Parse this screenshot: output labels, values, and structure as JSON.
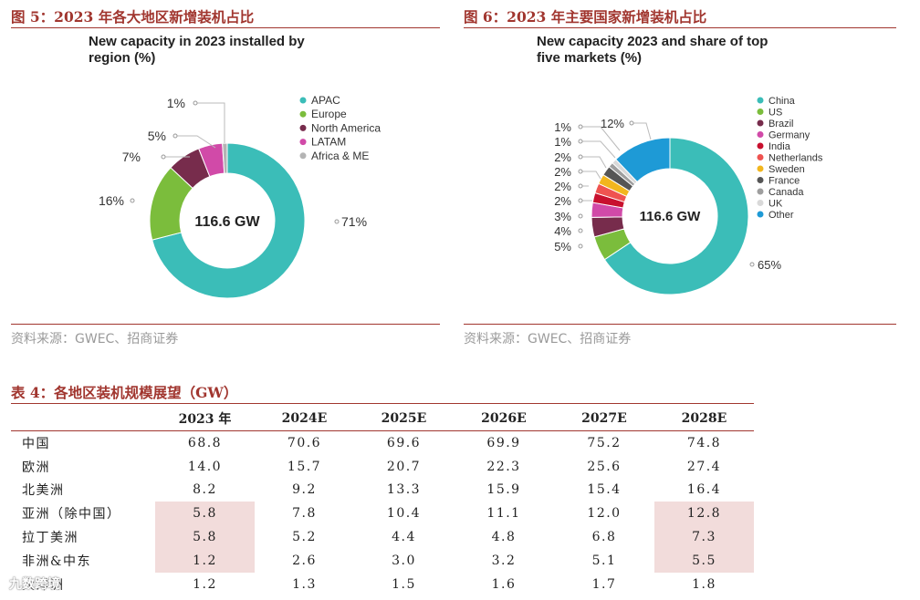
{
  "figure5": {
    "header": "图 5：2023 年各大地区新增装机占比",
    "source": "资料来源：GWEC、招商证券",
    "chart_data": {
      "type": "pie",
      "style": "donut",
      "title_lines": [
        "New capacity in 2023 installed by",
        "region (%)"
      ],
      "center_label": "116.6 GW",
      "slices": [
        {
          "name": "APAC",
          "value": 71,
          "label": "71%",
          "color": "#3bbdb8"
        },
        {
          "name": "Europe",
          "value": 16,
          "label": "16%",
          "color": "#7bbd3c"
        },
        {
          "name": "North America",
          "value": 7,
          "label": "7%",
          "color": "#772c4c"
        },
        {
          "name": "LATAM",
          "value": 5,
          "label": "5%",
          "color": "#d14aa8"
        },
        {
          "name": "Africa & ME",
          "value": 1,
          "label": "1%",
          "color": "#b4b4b4"
        }
      ]
    }
  },
  "figure6": {
    "header": "图 6：2023 年主要国家新增装机占比",
    "source": "资料来源：GWEC、招商证券",
    "chart_data": {
      "type": "pie",
      "style": "donut",
      "title_lines": [
        "New capacity 2023 and share of top",
        "five markets (%)"
      ],
      "center_label": "116.6 GW",
      "slices": [
        {
          "name": "China",
          "value": 65,
          "label": "65%",
          "color": "#3bbdb8"
        },
        {
          "name": "US",
          "value": 5,
          "label": "5%",
          "color": "#7bbd3c"
        },
        {
          "name": "Brazil",
          "value": 4,
          "label": "4%",
          "color": "#772c4c"
        },
        {
          "name": "Germany",
          "value": 3,
          "label": "3%",
          "color": "#d14aa8"
        },
        {
          "name": "India",
          "value": 2,
          "label": "2%",
          "color": "#c8102e"
        },
        {
          "name": "Netherlands",
          "value": 2,
          "label": "2%",
          "color": "#ef5350"
        },
        {
          "name": "Sweden",
          "value": 2,
          "label": "2%",
          "color": "#f2b61e"
        },
        {
          "name": "France",
          "value": 2,
          "label": "2%",
          "color": "#555555"
        },
        {
          "name": "Canada",
          "value": 1,
          "label": "1%",
          "color": "#9e9e9e"
        },
        {
          "name": "UK",
          "value": 1,
          "label": "1%",
          "color": "#d9d9d9"
        },
        {
          "name": "Other",
          "value": 12,
          "label": "12%",
          "color": "#1e9ad6"
        }
      ]
    }
  },
  "table4": {
    "title": "表 4：各地区装机规模展望（GW）",
    "columns": [
      "",
      "2023 年",
      "2024E",
      "2025E",
      "2026E",
      "2027E",
      "2028E"
    ],
    "rows": [
      {
        "label": "中国",
        "values": [
          "68.8",
          "70.6",
          "69.6",
          "69.9",
          "75.2",
          "74.8"
        ]
      },
      {
        "label": "欧洲",
        "values": [
          "14.0",
          "15.7",
          "20.7",
          "22.3",
          "25.6",
          "27.4"
        ]
      },
      {
        "label": "北美洲",
        "values": [
          "8.2",
          "9.2",
          "13.3",
          "15.9",
          "15.4",
          "16.4"
        ]
      },
      {
        "label": "亚洲（除中国）",
        "values": [
          "5.8",
          "7.8",
          "10.4",
          "11.1",
          "12.0",
          "12.8"
        ]
      },
      {
        "label": "拉丁美洲",
        "values": [
          "5.8",
          "5.2",
          "4.4",
          "4.8",
          "6.8",
          "7.3"
        ]
      },
      {
        "label": "非洲&中东",
        "values": [
          "1.2",
          "2.6",
          "3.0",
          "3.2",
          "5.1",
          "5.5"
        ]
      },
      {
        "label": "大洋洲",
        "values": [
          "1.2",
          "1.3",
          "1.5",
          "1.6",
          "1.7",
          "1.8"
        ]
      }
    ],
    "highlight_color": "#f2dcdb"
  },
  "watermark": "九数跨境"
}
